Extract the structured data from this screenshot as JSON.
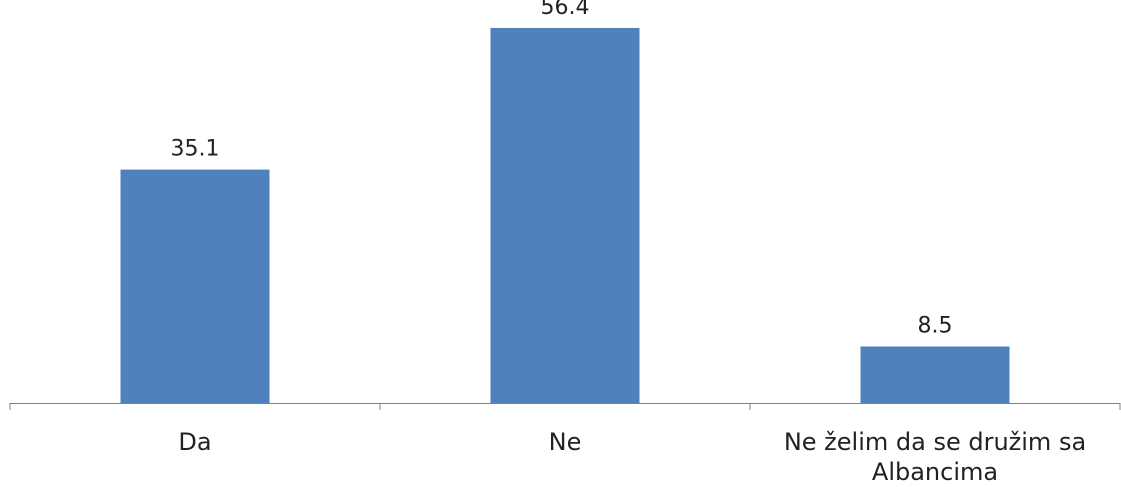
{
  "chart_data": {
    "type": "bar",
    "categories": [
      [
        "Da"
      ],
      [
        "Ne"
      ],
      [
        "Ne želim da se družim sa",
        "Albancima"
      ]
    ],
    "values": [
      35.1,
      56.4,
      8.5
    ],
    "data_labels": [
      "35.1",
      "56.4",
      "8.5"
    ],
    "title": "",
    "xlabel": "",
    "ylabel": "",
    "ylim": [
      0,
      60
    ],
    "grid": false,
    "legend": "none",
    "bar_color": "#4F81BD",
    "axis_color": "#7F7F7F"
  }
}
